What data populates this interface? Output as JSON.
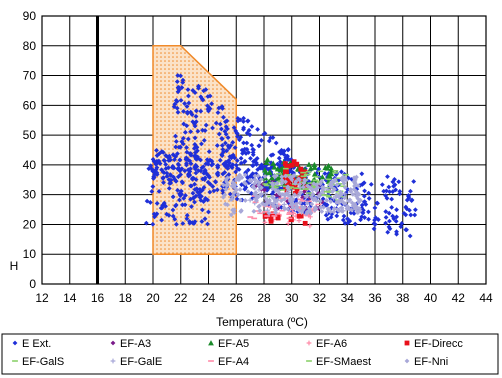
{
  "chart_data": {
    "type": "scatter",
    "xlabel": "Temperatura (ºC)",
    "ylabel": "H",
    "xlim": [
      12,
      44
    ],
    "ylim": [
      0,
      90
    ],
    "xticks": [
      "12",
      "14",
      "16",
      "18",
      "20",
      "22",
      "24",
      "26",
      "28",
      "30",
      "32",
      "34",
      "36",
      "38",
      "40",
      "42",
      "44"
    ],
    "yticks": [
      "0",
      "10",
      "20",
      "30",
      "40",
      "50",
      "60",
      "70",
      "80",
      "90"
    ],
    "grid": true,
    "legend_position": "bottom",
    "comfort_zone": [
      [
        20,
        80
      ],
      [
        22,
        80
      ],
      [
        26,
        62
      ],
      [
        26,
        10
      ],
      [
        20,
        10
      ]
    ],
    "reference_line_x": 16,
    "colors": {
      "blue": "#1f2fd8",
      "purple": "#7a1a8a",
      "green": "#1a8a2a",
      "pink": "#ff8aa8",
      "red": "#e8101a",
      "lightgreen": "#8ad06a",
      "lavender": "#a8a8d8",
      "zone_fill": "#fbe2c8",
      "zone_stroke": "#f08a2a"
    },
    "series": [
      {
        "name": "E Ext.",
        "marker": "diamond",
        "color": "#1f2fd8",
        "clusters": [
          {
            "x_range": [
              19.8,
              39
            ],
            "y_top": [
              45,
              35
            ],
            "y_bottom": [
              35,
              15
            ],
            "n": 420
          },
          {
            "x_range": [
              21.5,
              30
            ],
            "y_top": [
              73,
              45
            ],
            "y_bottom": [
              45,
              30
            ],
            "n": 260
          },
          {
            "x_range": [
              19.5,
              24
            ],
            "y_top": [
              45,
              45
            ],
            "y_bottom": [
              20,
              20
            ],
            "n": 120
          }
        ]
      },
      {
        "name": "EF-A3",
        "marker": "diamond",
        "color": "#7a1a8a",
        "clusters": [
          {
            "x_range": [
              27,
              33
            ],
            "y_top": [
              36,
              33
            ],
            "y_bottom": [
              26,
              24
            ],
            "n": 30
          }
        ]
      },
      {
        "name": "EF-A5",
        "marker": "triangle",
        "color": "#1a8a2a",
        "clusters": [
          {
            "x_range": [
              28,
              33
            ],
            "y_top": [
              42,
              40
            ],
            "y_bottom": [
              33,
              32
            ],
            "n": 70
          }
        ]
      },
      {
        "name": "EF-A6",
        "marker": "cross",
        "color": "#ff8aa8",
        "clusters": [
          {
            "x_range": [
              28,
              32
            ],
            "y_top": [
              28,
              26
            ],
            "y_bottom": [
              20,
              19
            ],
            "n": 30
          }
        ]
      },
      {
        "name": "EF-Direcc",
        "marker": "square",
        "color": "#e8101a",
        "clusters": [
          {
            "x_range": [
              29.5,
              31
            ],
            "y_top": [
              42,
              40
            ],
            "y_bottom": [
              30,
              30
            ],
            "n": 35
          },
          {
            "x_range": [
              28,
              31
            ],
            "y_top": [
              24,
              24
            ],
            "y_bottom": [
              20,
              20
            ],
            "n": 15
          }
        ]
      },
      {
        "name": "EF-GalS",
        "marker": "dash",
        "color": "#8ad06a",
        "clusters": [
          {
            "x_range": [
              29,
              34
            ],
            "y_top": [
              40,
              38
            ],
            "y_bottom": [
              32,
              30
            ],
            "n": 40
          }
        ]
      },
      {
        "name": "EF-GalE",
        "marker": "cross",
        "color": "#a8a8d8",
        "clusters": [
          {
            "x_range": [
              27,
              34
            ],
            "y_top": [
              33,
              32
            ],
            "y_bottom": [
              24,
              24
            ],
            "n": 40
          }
        ]
      },
      {
        "name": "EF-A4",
        "marker": "dash",
        "color": "#ff8aa8",
        "clusters": [
          {
            "x_range": [
              27,
              32
            ],
            "y_top": [
              30,
              28
            ],
            "y_bottom": [
              22,
              22
            ],
            "n": 25
          }
        ]
      },
      {
        "name": "EF-SMaest",
        "marker": "dash",
        "color": "#8ad06a",
        "clusters": [
          {
            "x_range": [
              28,
              34
            ],
            "y_top": [
              35,
              34
            ],
            "y_bottom": [
              28,
              27
            ],
            "n": 30
          }
        ]
      },
      {
        "name": "EF-Nni",
        "marker": "diamond",
        "color": "#a8a8d8",
        "clusters": [
          {
            "x_range": [
              25,
              35
            ],
            "y_top": [
              37,
              36
            ],
            "y_bottom": [
              23,
              24
            ],
            "n": 260
          }
        ]
      }
    ]
  }
}
